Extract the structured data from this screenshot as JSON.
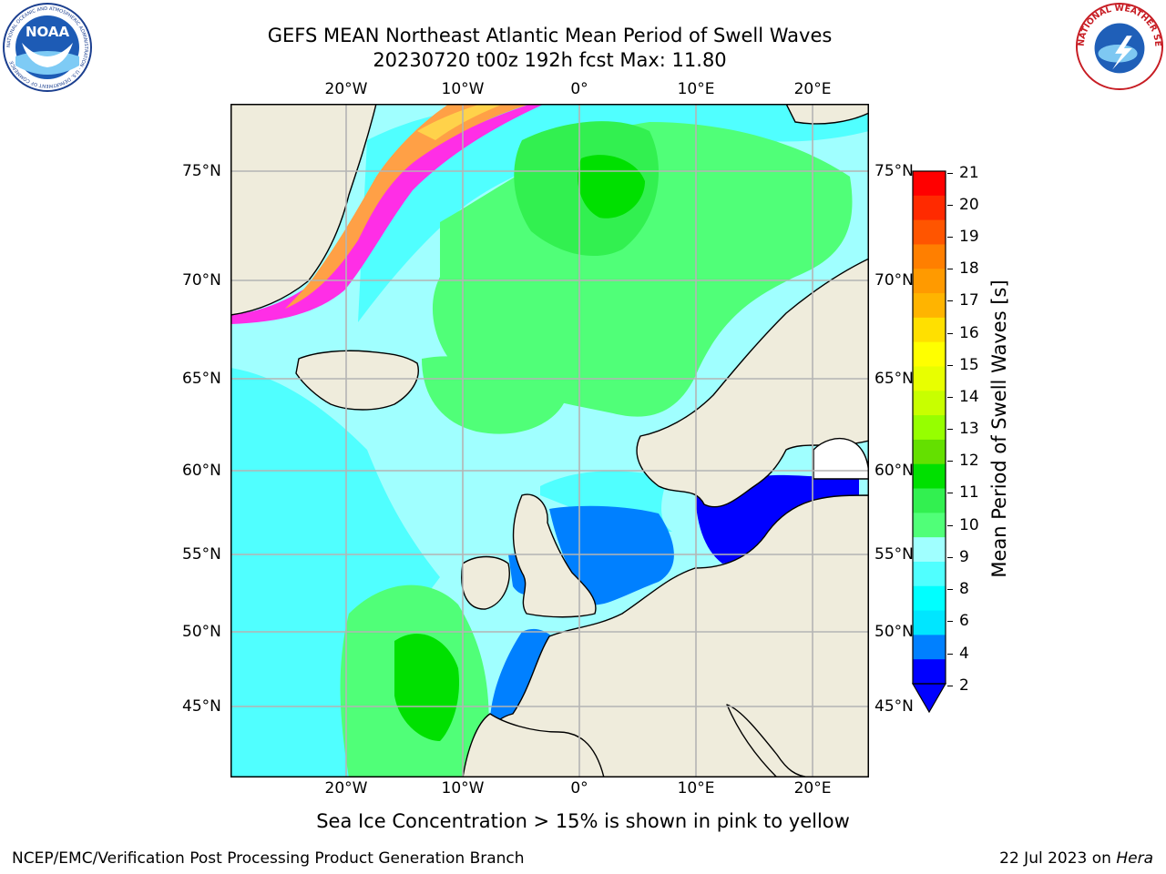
{
  "header": {
    "title_line1": "GEFS MEAN Northeast Atlantic Mean Period of Swell Waves",
    "title_line2": "20230720 t00z 192h fcst   Max: 11.80"
  },
  "logos": {
    "noaa_text": "NOAA",
    "noaa_ring_text": "NATIONAL OCEANIC AND ATMOSPHERIC ADMINISTRATION · U.S. DEPARTMENT OF COMMERCE",
    "nws_ring_text": "NATIONAL WEATHER SERVICE"
  },
  "map": {
    "lon_ticks_top": [
      "20°W",
      "10°W",
      "0°",
      "10°E",
      "20°E"
    ],
    "lon_ticks_bottom": [
      "20°W",
      "10°W",
      "0°",
      "10°E",
      "20°E"
    ],
    "lat_ticks_left": [
      "75°N",
      "70°N",
      "65°N",
      "60°N",
      "55°N",
      "50°N",
      "45°N"
    ],
    "lat_ticks_right": [
      "75°N",
      "70°N",
      "65°N",
      "60°N",
      "55°N",
      "50°N",
      "45°N"
    ],
    "colors": {
      "land": "#efecdc",
      "coast": "#000000",
      "grid": "#b4b4b4",
      "ice_pink": "#ff2ee6",
      "ice_orange": "#ffa046",
      "ice_yellow": "#ffd24a"
    }
  },
  "colorbar": {
    "title": "Mean Period of Swell Waves [s]",
    "labels": [
      "21",
      "20",
      "19",
      "18",
      "17",
      "16",
      "15",
      "14",
      "13",
      "12",
      "11",
      "10",
      "9",
      "8",
      "6",
      "4",
      "2"
    ],
    "colors_top_to_bottom": [
      "#ff0000",
      "#ff2a00",
      "#ff5500",
      "#ff7f00",
      "#ff9a00",
      "#ffb400",
      "#ffe000",
      "#ffff00",
      "#e8ff00",
      "#c8ff00",
      "#96ff00",
      "#64e000",
      "#00e000",
      "#32f050",
      "#50ff78",
      "#a0ffff",
      "#50ffff",
      "#00ffff",
      "#00e6ff",
      "#0080ff",
      "#0000ff"
    ],
    "under_color": "#0000ff"
  },
  "note": "Sea Ice Concentration > 15% is shown in pink to yellow",
  "footer": {
    "left": "NCEP/EMC/Verification Post Processing Product Generation Branch",
    "right_date": "22 Jul 2023 on ",
    "right_host": "Hera"
  }
}
